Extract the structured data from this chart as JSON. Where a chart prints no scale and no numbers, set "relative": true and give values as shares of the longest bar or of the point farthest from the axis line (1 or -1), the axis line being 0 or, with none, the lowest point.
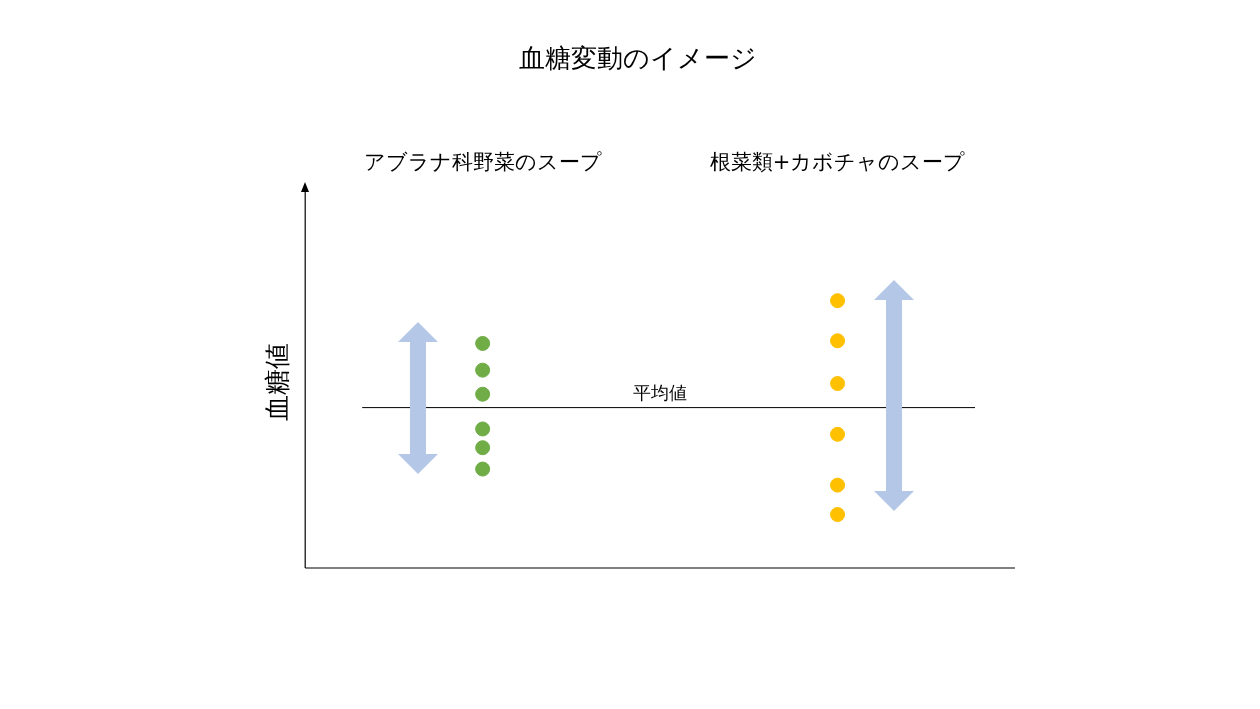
{
  "chart_data": {
    "type": "scatter",
    "title": "血糖変動のイメージ",
    "ylabel": "血糖値",
    "relative": true,
    "categories": [
      "アブラナ科野菜のスープ",
      "根菜類+カボチャのスープ"
    ],
    "marker": "circle",
    "legend": false,
    "grid": false,
    "series": [
      {
        "color": "#70ad47",
        "x": [
          "アブラナ科野菜のスープ",
          "アブラナ科野菜のスープ",
          "アブラナ科野菜のスープ",
          "アブラナ科野菜のスープ",
          "アブラナ科野菜のスープ",
          "アブラナ科野菜のスープ"
        ],
        "values": [
          0.84,
          0.74,
          0.65,
          0.52,
          0.45,
          0.37
        ]
      },
      {
        "color": "#ffc000",
        "x": [
          "根菜類+カボチャのスープ",
          "根菜類+カボチャのスープ",
          "根菜類+カボチャのスープ",
          "根菜類+カボチャのスープ",
          "根菜類+カボチャのスープ",
          "根菜類+カボチャのスープ"
        ],
        "values": [
          1,
          0.85,
          0.69,
          0.5,
          0.31,
          0.2
        ]
      }
    ],
    "ref_lines": [
      {
        "axis": "y",
        "value": 0.6,
        "label": "平均値",
        "color": "#000000"
      }
    ]
  }
}
